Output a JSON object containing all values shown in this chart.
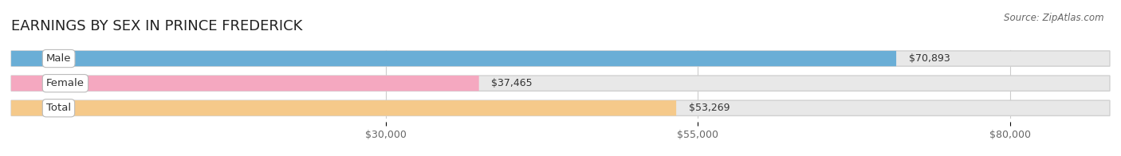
{
  "title": "EARNINGS BY SEX IN PRINCE FREDERICK",
  "source": "Source: ZipAtlas.com",
  "categories": [
    "Male",
    "Female",
    "Total"
  ],
  "values": [
    70893,
    37465,
    53269
  ],
  "x_min": 0,
  "x_max": 88000,
  "bar_colors": [
    "#6aaed6",
    "#f5a8c0",
    "#f5c98a"
  ],
  "bar_bg_color": "#e0e0e0",
  "tick_labels": [
    "$30,000",
    "$55,000",
    "$80,000"
  ],
  "tick_values": [
    30000,
    55000,
    80000
  ],
  "title_fontsize": 13,
  "source_fontsize": 8.5,
  "bar_height": 0.62,
  "bar_spacing": 1.0,
  "background_color": "#ffffff",
  "label_color": "#333333",
  "value_color": "#333333",
  "grid_color": "#cccccc",
  "tick_color": "#666666"
}
